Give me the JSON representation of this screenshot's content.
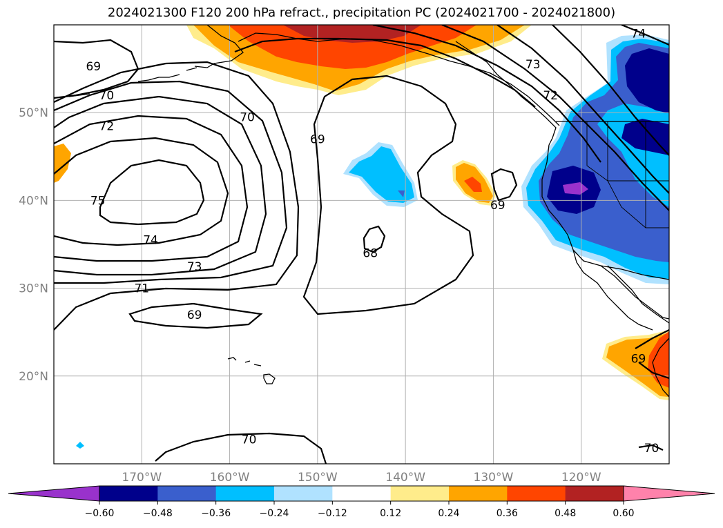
{
  "title": "2024021300 F120 200 hPa refract., precipitation PC (2024021700 - 2024021800)",
  "map": {
    "lon_range": [
      -180,
      -110
    ],
    "lat_range": [
      10,
      60
    ],
    "lon_ticks": [
      {
        "value": -170,
        "label": "170°W"
      },
      {
        "value": -160,
        "label": "160°W"
      },
      {
        "value": -150,
        "label": "150°W"
      },
      {
        "value": -140,
        "label": "140°W"
      },
      {
        "value": -130,
        "label": "130°W"
      },
      {
        "value": -120,
        "label": "120°W"
      }
    ],
    "lat_ticks": [
      {
        "value": 50,
        "label": "50°N"
      },
      {
        "value": 40,
        "label": "40°N"
      },
      {
        "value": 30,
        "label": "30°N"
      },
      {
        "value": 20,
        "label": "20°N"
      }
    ],
    "grid": true,
    "contour_labels": [
      {
        "text": "69",
        "lon": -175.5,
        "lat": 55.3
      },
      {
        "text": "70",
        "lon": -174.0,
        "lat": 52.0
      },
      {
        "text": "72",
        "lon": -174.0,
        "lat": 48.5
      },
      {
        "text": "75",
        "lon": -175.0,
        "lat": 40.0
      },
      {
        "text": "74",
        "lon": -169.0,
        "lat": 35.5
      },
      {
        "text": "73",
        "lon": -164.0,
        "lat": 32.5
      },
      {
        "text": "71",
        "lon": -170.0,
        "lat": 30.0
      },
      {
        "text": "69",
        "lon": -164.0,
        "lat": 27.0
      },
      {
        "text": "70",
        "lon": -158.0,
        "lat": 49.5
      },
      {
        "text": "69",
        "lon": -150.0,
        "lat": 47.0
      },
      {
        "text": "68",
        "lon": -144.0,
        "lat": 34.0
      },
      {
        "text": "69",
        "lon": -129.5,
        "lat": 39.5
      },
      {
        "text": "73",
        "lon": -125.5,
        "lat": 55.5
      },
      {
        "text": "72",
        "lon": -123.5,
        "lat": 52.0
      },
      {
        "text": "74",
        "lon": -113.5,
        "lat": 59.0
      },
      {
        "text": "69",
        "lon": -113.5,
        "lat": 22.0
      },
      {
        "text": "70",
        "lon": -157.8,
        "lat": 12.8
      },
      {
        "text": "70",
        "lon": -112.0,
        "lat": 11.8
      }
    ]
  },
  "colorbar": {
    "colors": [
      "#9932cc",
      "#00008b",
      "#3a5fcd",
      "#00bfff",
      "#b0e2ff",
      "#ffffff",
      "#ffec8b",
      "#ffa500",
      "#ff4500",
      "#b22222",
      "#ff82ab"
    ],
    "ticks": [
      "−0.60",
      "−0.48",
      "−0.36",
      "−0.24",
      "−0.12",
      "0.12",
      "0.24",
      "0.36",
      "0.48",
      "0.60"
    ]
  }
}
